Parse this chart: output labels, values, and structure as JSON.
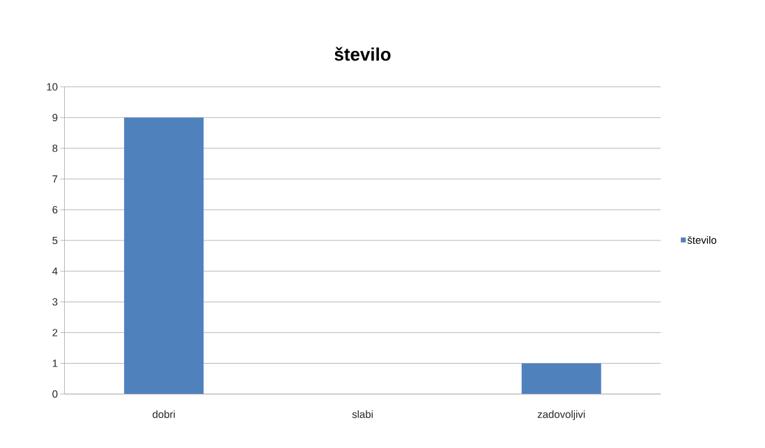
{
  "chart_data": {
    "type": "bar",
    "title": "število",
    "categories": [
      "dobri",
      "slabi",
      "zadovoljivi"
    ],
    "series": [
      {
        "name": "število",
        "color": "#4f81bd",
        "values": [
          9,
          0,
          1
        ]
      }
    ],
    "ylim": [
      0,
      10
    ],
    "yticks": [
      0,
      1,
      2,
      3,
      4,
      5,
      6,
      7,
      8,
      9,
      10
    ],
    "grid": "y",
    "legend": "right"
  }
}
